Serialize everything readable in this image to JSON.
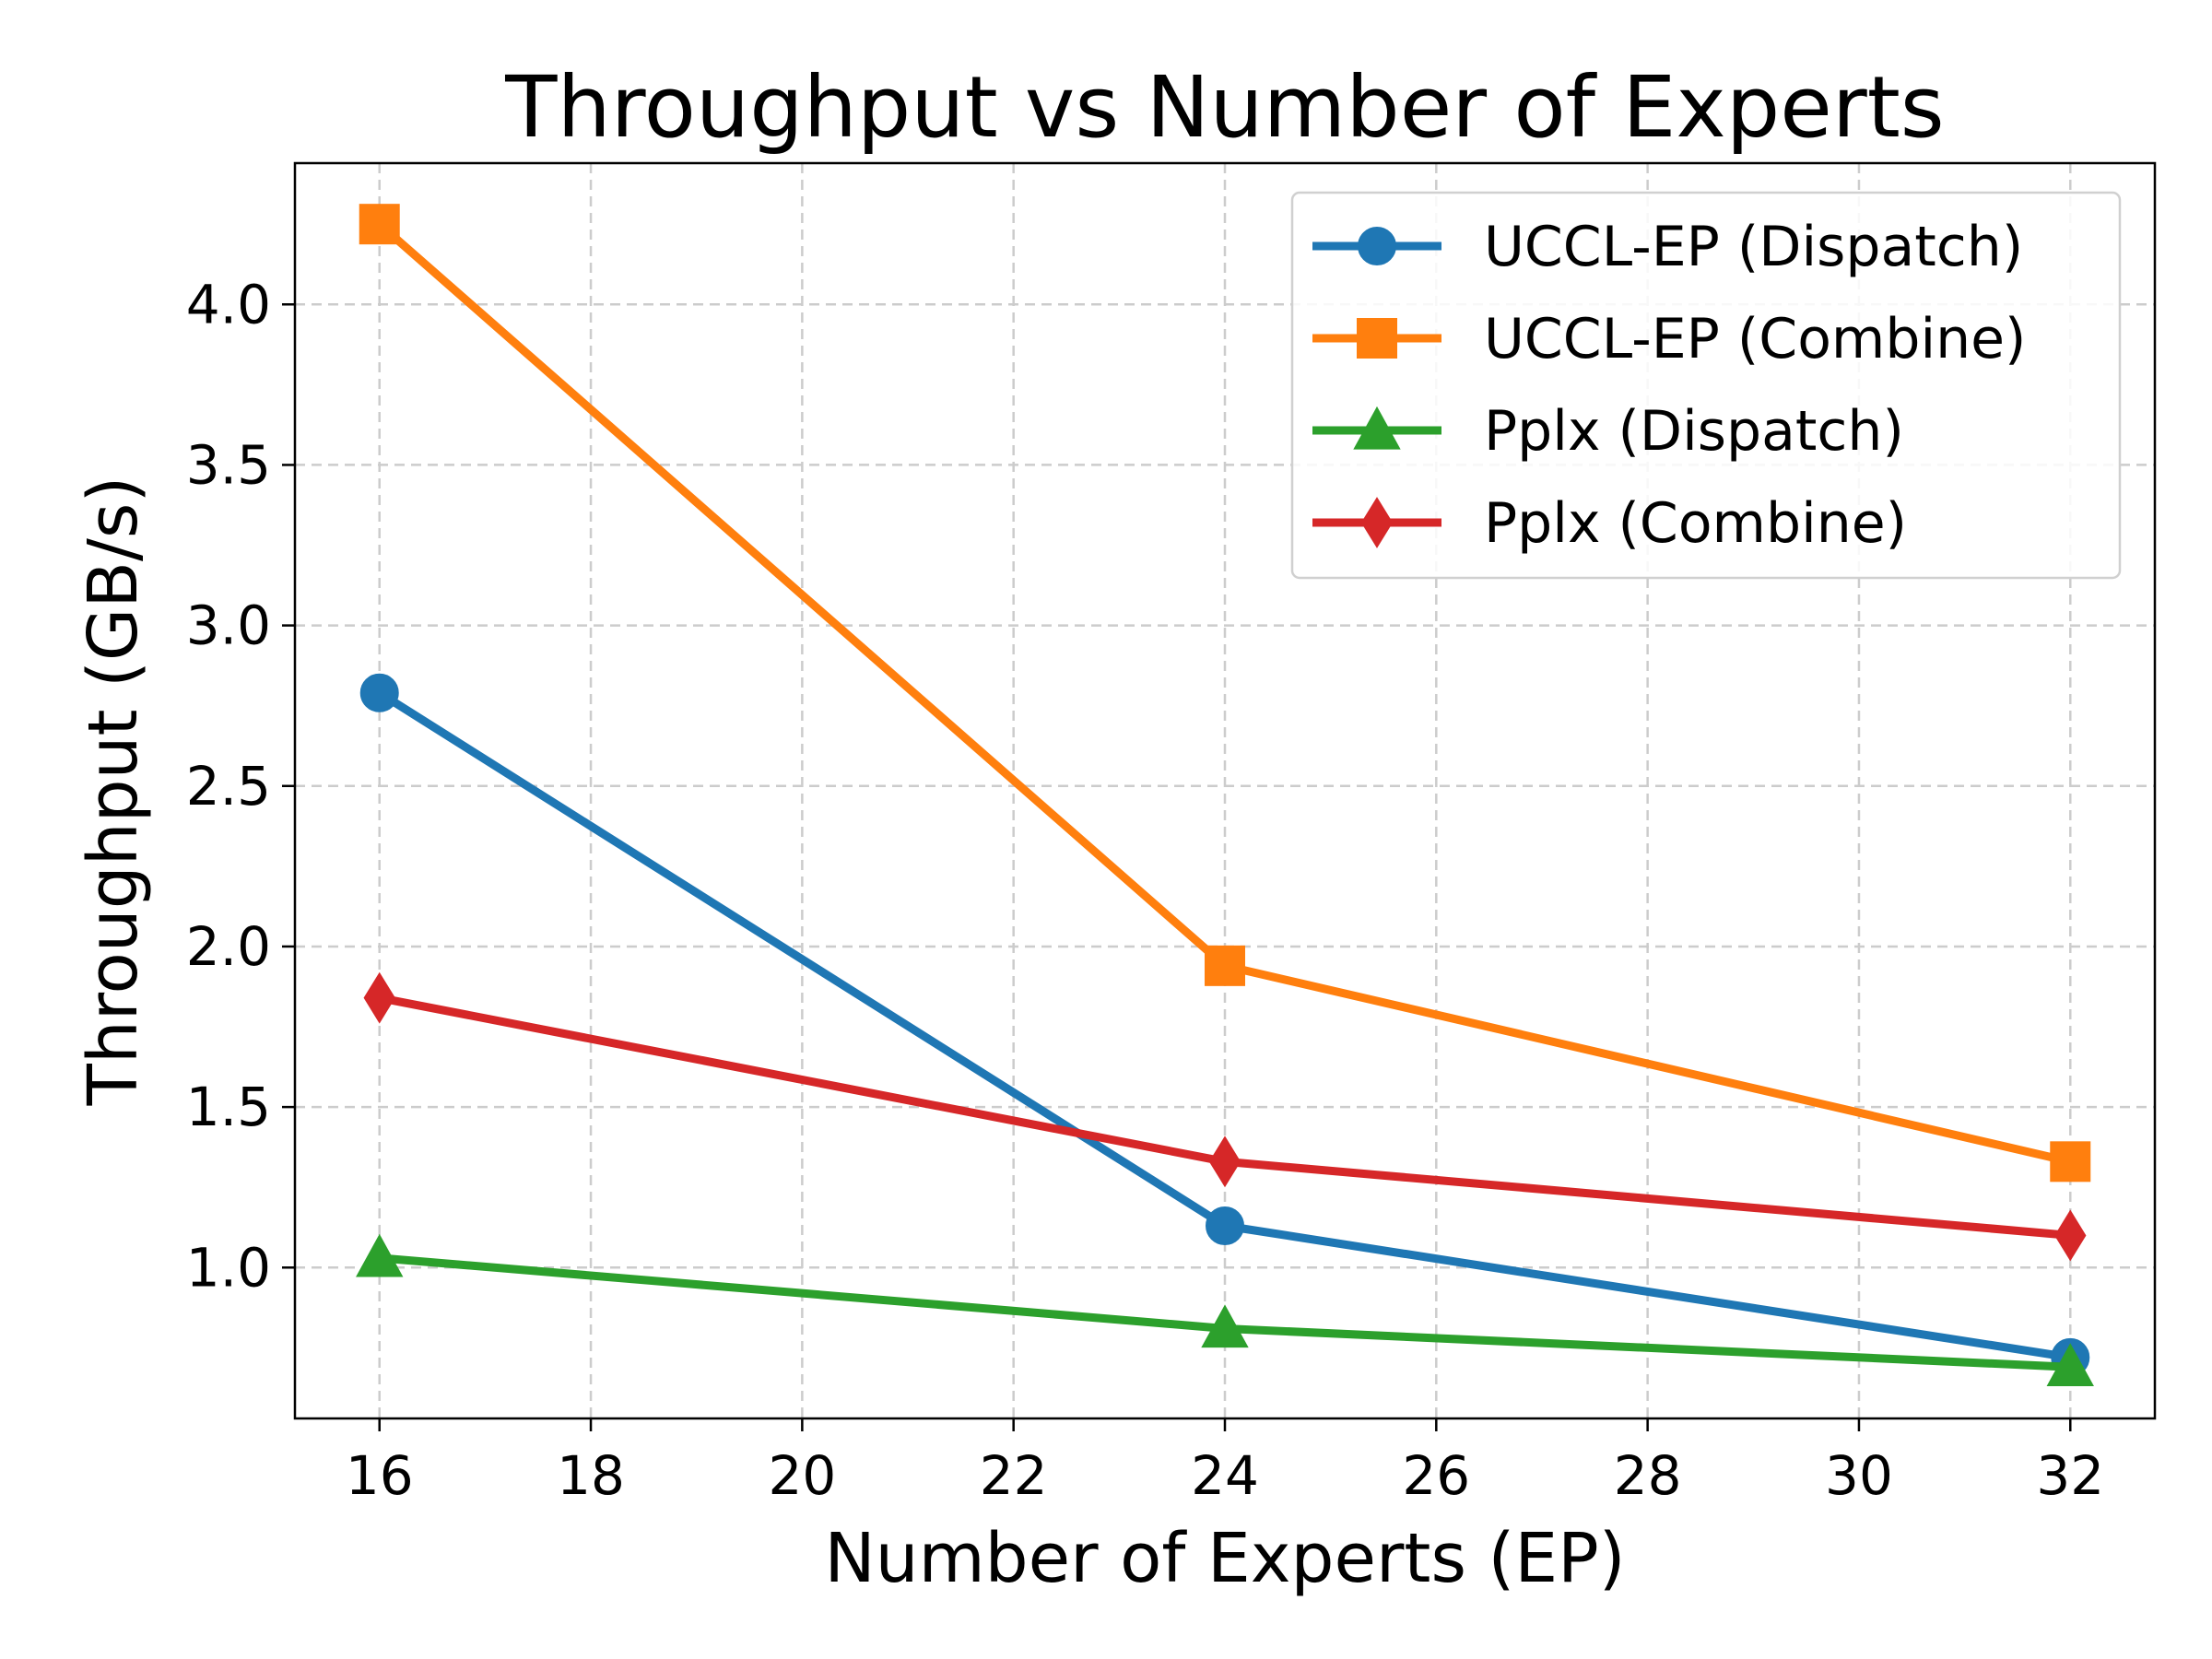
{
  "chart_data": {
    "type": "line",
    "title": "Throughput vs Number of Experts",
    "xlabel": "Number of Experts (EP)",
    "ylabel": "Throughput (GB/s)",
    "x": [
      16,
      24,
      32
    ],
    "xlim": [
      15.2,
      32.8
    ],
    "ylim": [
      0.53,
      4.44
    ],
    "xticks": [
      16,
      18,
      20,
      22,
      24,
      26,
      28,
      30,
      32
    ],
    "xtick_labels": [
      "16",
      "18",
      "20",
      "22",
      "24",
      "26",
      "28",
      "30",
      "32"
    ],
    "yticks": [
      1.0,
      1.5,
      2.0,
      2.5,
      3.0,
      3.5,
      4.0
    ],
    "ytick_labels": [
      "1.0",
      "1.5",
      "2.0",
      "2.5",
      "3.0",
      "3.5",
      "4.0"
    ],
    "grid": true,
    "legend_position": "top-right",
    "series": [
      {
        "name": "UCCL-EP (Dispatch)",
        "values": [
          2.79,
          1.13,
          0.72
        ],
        "color": "#1f77b4",
        "marker": "circle"
      },
      {
        "name": "UCCL-EP (Combine)",
        "values": [
          4.25,
          1.94,
          1.33
        ],
        "color": "#ff7f0e",
        "marker": "square"
      },
      {
        "name": "Pplx (Dispatch)",
        "values": [
          1.03,
          0.81,
          0.69
        ],
        "color": "#2ca02c",
        "marker": "triangle"
      },
      {
        "name": "Pplx (Combine)",
        "values": [
          1.84,
          1.33,
          1.1
        ],
        "color": "#d62728",
        "marker": "diamond"
      }
    ]
  }
}
